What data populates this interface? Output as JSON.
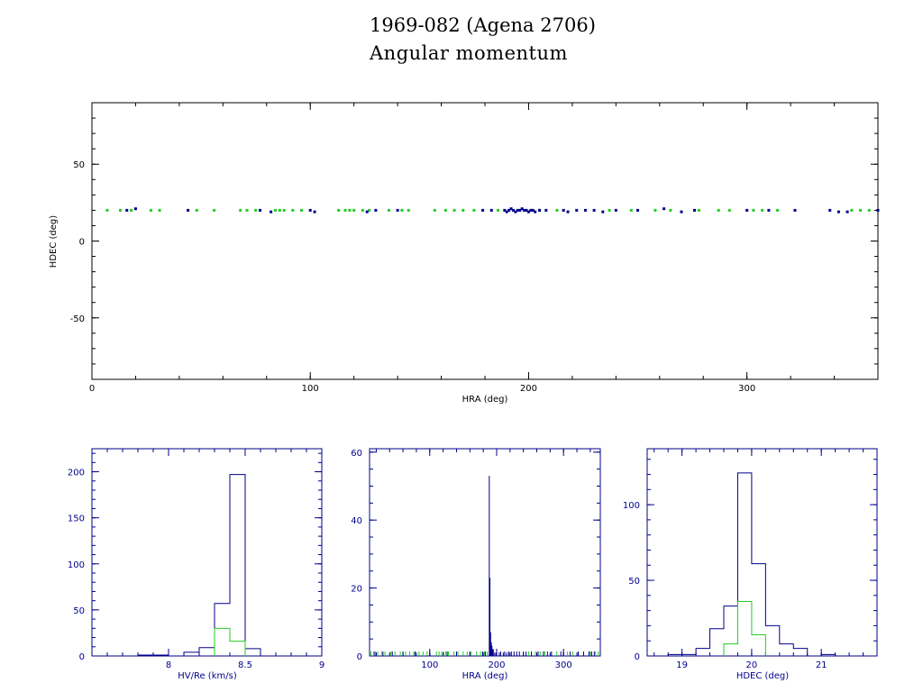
{
  "title": "1969-082 (Agena 2706)",
  "subtitle": "Angular momentum",
  "colors": {
    "primary": "#00008b",
    "secondary": "#22cc22",
    "axis": "#000000"
  },
  "chart_data": [
    {
      "type": "scatter",
      "name": "main",
      "xlabel": "HRA (deg)",
      "ylabel": "HDEC (deg)",
      "xlim": [
        0,
        360
      ],
      "ylim": [
        -90,
        90
      ],
      "xticks": [
        0,
        100,
        200,
        300
      ],
      "yticks": [
        -50,
        0,
        50
      ],
      "series": [
        {
          "color": "#22cc22",
          "marker": "square",
          "x": [
            7,
            13,
            18,
            27,
            31,
            48,
            56,
            68,
            71,
            75,
            84,
            86,
            88,
            92,
            96,
            113,
            116,
            118,
            120,
            124,
            127,
            136,
            142,
            145,
            157,
            162,
            166,
            170,
            175,
            186,
            205,
            213,
            237,
            247,
            258,
            265,
            278,
            287,
            292,
            303,
            307,
            314,
            348,
            352,
            356
          ],
          "y": [
            20,
            20,
            20,
            20,
            20,
            20,
            20,
            20,
            20,
            20,
            20,
            20,
            20,
            20,
            20,
            20,
            20,
            20,
            20,
            20,
            20,
            20,
            20,
            20,
            20,
            20,
            20,
            20,
            20,
            20,
            20,
            20,
            20,
            20,
            20,
            20,
            20,
            20,
            20,
            20,
            20,
            20,
            20,
            20,
            20
          ]
        },
        {
          "color": "#00008b",
          "marker": "square",
          "x": [
            16,
            20,
            44,
            77,
            82,
            100,
            102,
            126,
            130,
            140,
            179,
            183,
            189,
            190,
            191,
            192,
            193,
            194,
            195,
            196,
            197,
            198,
            199,
            200,
            201,
            202,
            203,
            205,
            208,
            216,
            218,
            222,
            226,
            230,
            234,
            240,
            250,
            262,
            270,
            276,
            300,
            310,
            322,
            338,
            342,
            346,
            360
          ],
          "y": [
            20,
            21,
            20,
            20,
            19,
            20,
            19,
            19,
            20,
            20,
            20,
            20,
            20,
            19,
            20,
            21,
            20,
            19,
            20,
            20,
            21,
            20,
            20,
            19,
            20,
            20,
            19,
            20,
            20,
            20,
            19,
            20,
            20,
            20,
            19,
            20,
            20,
            21,
            19,
            20,
            20,
            20,
            20,
            20,
            19,
            19,
            20
          ]
        }
      ]
    },
    {
      "type": "histogram",
      "name": "hv",
      "xlabel": "HV/Re (km/s)",
      "ylabel": "",
      "xlim": [
        7.5,
        9
      ],
      "ylim": [
        0,
        225
      ],
      "xticks": [
        8,
        8.5,
        9
      ],
      "xtick_labels": [
        "8",
        "8.5",
        "9"
      ],
      "yticks": [
        0,
        50,
        100,
        150,
        200
      ],
      "series": [
        {
          "color": "#00008b",
          "bin_width": 0.1,
          "bin_starts": [
            7.8,
            7.9,
            8.0,
            8.1,
            8.2,
            8.3,
            8.4,
            8.5
          ],
          "counts": [
            1,
            1,
            0,
            4,
            9,
            57,
            197,
            8
          ]
        },
        {
          "color": "#22cc22",
          "bin_width": 0.1,
          "bin_starts": [
            8.3,
            8.4
          ],
          "counts": [
            30,
            16
          ]
        }
      ]
    },
    {
      "type": "histogram",
      "name": "hra",
      "xlabel": "HRA (deg)",
      "ylabel": "",
      "xlim": [
        10,
        355
      ],
      "ylim": [
        0,
        61
      ],
      "xticks": [
        100,
        200,
        300
      ],
      "yticks": [
        0,
        20,
        40,
        60
      ],
      "spikes": [
        {
          "color": "#00008b",
          "x": [
            189,
            190,
            191,
            192,
            193,
            194,
            195,
            197,
            199,
            204,
            210,
            215
          ],
          "y": [
            53,
            23,
            7,
            4,
            3,
            2,
            2,
            1,
            1,
            1,
            1,
            1
          ]
        }
      ],
      "rug": [
        {
          "color": "#22cc22",
          "x": [
            12,
            16,
            22,
            28,
            33,
            42,
            48,
            56,
            64,
            70,
            76,
            84,
            90,
            96,
            110,
            114,
            118,
            121,
            124,
            128,
            136,
            142,
            150,
            156,
            162,
            170,
            176,
            182,
            186,
            248,
            258,
            265,
            272,
            290,
            306,
            314,
            322,
            340,
            348,
            352
          ]
        },
        {
          "color": "#00008b",
          "x": [
            18,
            30,
            44,
            60,
            78,
            100,
            126,
            140,
            160,
            179,
            183,
            200,
            206,
            212,
            218,
            222,
            226,
            230,
            234,
            240,
            244,
            252,
            262,
            270,
            276,
            282,
            296,
            300,
            310,
            322,
            330,
            338,
            342,
            346
          ]
        }
      ]
    },
    {
      "type": "histogram",
      "name": "hdec",
      "xlabel": "HDEC (deg)",
      "ylabel": "",
      "xlim": [
        18.5,
        21.8
      ],
      "ylim": [
        0,
        137
      ],
      "xticks": [
        19,
        20,
        21
      ],
      "yticks": [
        0,
        50,
        100
      ],
      "series": [
        {
          "color": "#00008b",
          "bin_width": 0.2,
          "bin_starts": [
            18.8,
            19.0,
            19.2,
            19.4,
            19.6,
            19.8,
            20.0,
            20.2,
            20.4,
            20.6,
            20.8,
            21.0
          ],
          "counts": [
            1,
            1,
            5,
            18,
            33,
            121,
            61,
            20,
            8,
            5,
            0,
            1
          ]
        },
        {
          "color": "#22cc22",
          "bin_width": 0.2,
          "bin_starts": [
            19.6,
            19.8,
            20.0
          ],
          "counts": [
            8,
            36,
            14
          ]
        }
      ]
    }
  ]
}
